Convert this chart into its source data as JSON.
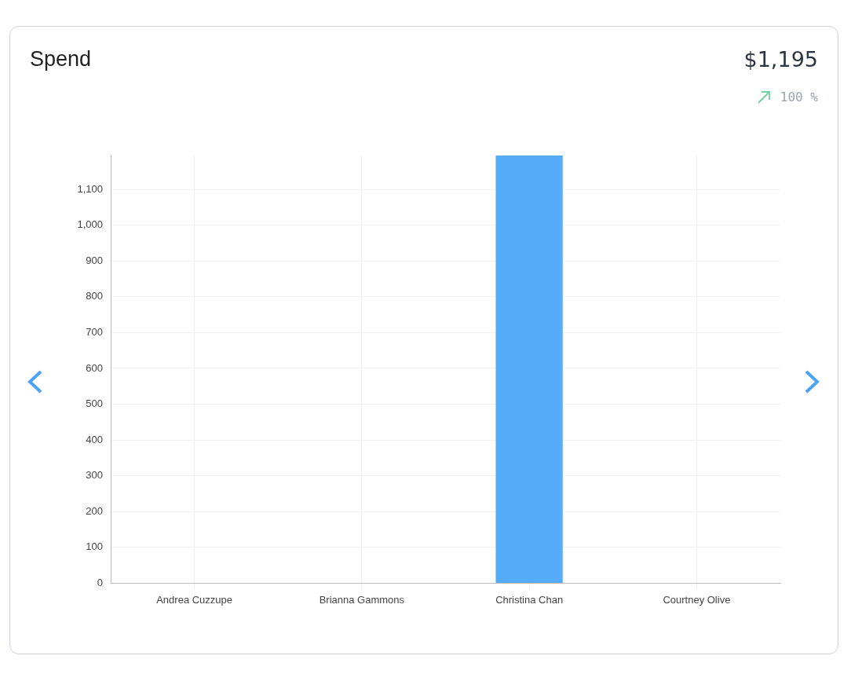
{
  "chart_data": {
    "type": "bar",
    "title": "Spend",
    "annotations": [
      "$1,195",
      "100 %"
    ],
    "categories": [
      "Andrea Cuzzupe",
      "Brianna Gammons",
      "Christina Chan",
      "Courtney Olive"
    ],
    "values": [
      0,
      0,
      1195,
      0
    ],
    "color": "#56acf8",
    "ylim": [
      0,
      1195
    ],
    "yticks": [
      0,
      100,
      200,
      300,
      400,
      500,
      600,
      700,
      800,
      900,
      {
        "value": 1000,
        "label": "1,000"
      },
      {
        "value": 1100,
        "label": "1,100"
      }
    ],
    "grid": true,
    "legend": false
  }
}
